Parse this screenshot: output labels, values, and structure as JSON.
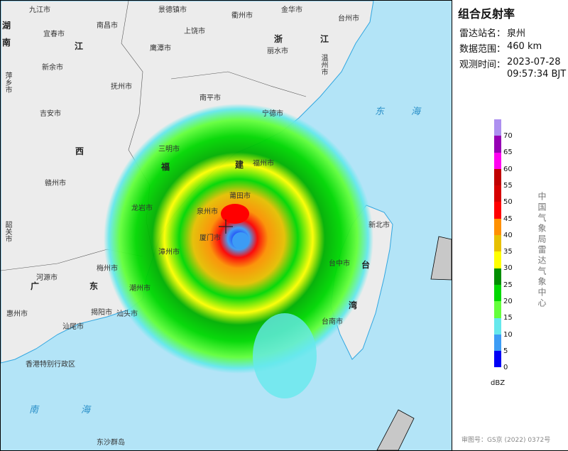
{
  "panel": {
    "title": "组合反射率",
    "station_label": "雷达站名：",
    "station": "泉州",
    "range_label": "数据范围：",
    "range": "460 km",
    "time_label": "观测时间：",
    "date": "2023-07-28",
    "time": "09:57:34 BJT",
    "unit": "dBZ",
    "organization": "中国气象局雷达气象中心",
    "review_no": "审图号：GS京 (2022) 0372号"
  },
  "legend": {
    "ticks": [
      "70",
      "65",
      "60",
      "55",
      "50",
      "45",
      "40",
      "35",
      "30",
      "25",
      "20",
      "15",
      "10",
      "5",
      "0"
    ],
    "colors": [
      "#ad90f0",
      "#9600b4",
      "#ff00f0",
      "#c00000",
      "#d60000",
      "#ff0000",
      "#ff9000",
      "#e7c000",
      "#ffff00",
      "#008e00",
      "#00d800",
      "#64ff3c",
      "#66e8ec",
      "#3c9cf5",
      "#0000f6"
    ]
  },
  "map": {
    "land_color": "#ececec",
    "sea_color": "#b3e4f7",
    "coast_color": "#31a6e0",
    "cities": [
      "九江市",
      "宜春市",
      "南昌市",
      "景德镇市",
      "衢州市",
      "金华市",
      "台州市",
      "上饶市",
      "鹰潭市",
      "丽水市",
      "新余市",
      "抚州市",
      "温州市",
      "萍乡市",
      "吉安市",
      "南平市",
      "宁德市",
      "三明市",
      "赣州市",
      "龙岩市",
      "泉州市",
      "莆田市",
      "福州市",
      "厦门市",
      "漳州市",
      "韶关市",
      "梅州市",
      "河源市",
      "潮州市",
      "揭阳市",
      "汕头市",
      "惠州市",
      "汕尾市",
      "新北市",
      "台中市",
      "台南市",
      "香港特别行政区",
      "东沙群岛"
    ],
    "provinces": [
      "湖",
      "南",
      "江",
      "浙",
      "江",
      "西",
      "福",
      "建",
      "广",
      "东",
      "台",
      "湾"
    ],
    "seas": [
      "东海",
      "南海"
    ]
  }
}
